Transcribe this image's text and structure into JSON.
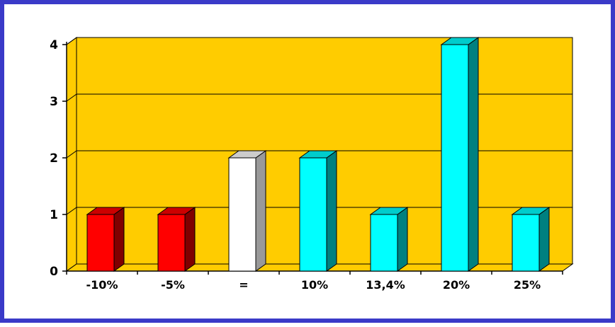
{
  "chart_data": {
    "type": "bar",
    "categories": [
      "-10%",
      "-5%",
      "=",
      "10%",
      "13,4%",
      "20%",
      "25%"
    ],
    "values": [
      1,
      1,
      2,
      2,
      1,
      4,
      1
    ],
    "ylim": [
      0,
      4
    ],
    "yticks": [
      0,
      1,
      2,
      3,
      4
    ],
    "grid": true,
    "three_d": true,
    "colors": {
      "frame": "#3a3ac8",
      "plot_background": "#ffcc00",
      "bars": [
        "#ff0000",
        "#ff0000",
        "#ffffff",
        "#00ffff",
        "#00ffff",
        "#00ffff",
        "#00ffff"
      ]
    }
  }
}
